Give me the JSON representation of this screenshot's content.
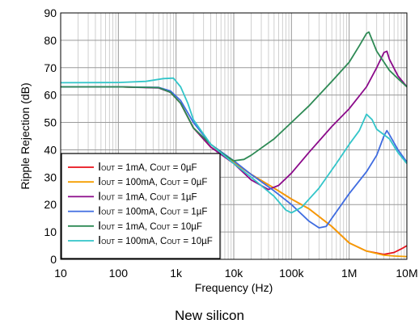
{
  "chart_data": {
    "type": "line",
    "xlabel": "Frequency (Hz)",
    "ylabel": "Ripple Rejection (dB)",
    "xscale": "log",
    "xlim": [
      10,
      10000000
    ],
    "ylim": [
      0,
      90
    ],
    "grid": true,
    "legend_position": "bottom-left",
    "x_ticks": [
      {
        "value": 10,
        "label": "10"
      },
      {
        "value": 100,
        "label": "100"
      },
      {
        "value": 1000,
        "label": "1k"
      },
      {
        "value": 10000,
        "label": "10k"
      },
      {
        "value": 100000,
        "label": "100k"
      },
      {
        "value": 1000000,
        "label": "1M"
      },
      {
        "value": 10000000,
        "label": "10M"
      }
    ],
    "y_ticks": [
      0,
      10,
      20,
      30,
      40,
      50,
      60,
      70,
      80,
      90
    ],
    "series": [
      {
        "label_parts": [
          [
            "I",
            "OUT"
          ],
          [
            " = 1mA, C",
            "OUT"
          ],
          [
            " = 0µF",
            ""
          ]
        ],
        "color": "#e8111a",
        "points": [
          [
            10,
            63
          ],
          [
            100,
            63
          ],
          [
            500,
            62.7
          ],
          [
            800,
            61
          ],
          [
            1200,
            57
          ],
          [
            2000,
            48
          ],
          [
            4000,
            41
          ],
          [
            10000,
            35.5
          ],
          [
            20000,
            31
          ],
          [
            50000,
            26
          ],
          [
            100000,
            22
          ],
          [
            200000,
            18.5
          ],
          [
            500000,
            12
          ],
          [
            1000000,
            6
          ],
          [
            2000000,
            3
          ],
          [
            4000000,
            1.8
          ],
          [
            6000000,
            2.5
          ],
          [
            8000000,
            3.8
          ],
          [
            10000000,
            5
          ]
        ]
      },
      {
        "label_parts": [
          [
            "I",
            "OUT"
          ],
          [
            " = 100mA, C",
            "OUT"
          ],
          [
            " = 0µF",
            ""
          ]
        ],
        "color": "#f59f00",
        "points": [
          [
            10,
            63
          ],
          [
            100,
            63
          ],
          [
            500,
            62.7
          ],
          [
            800,
            61
          ],
          [
            1200,
            57
          ],
          [
            2000,
            48
          ],
          [
            4000,
            41
          ],
          [
            10000,
            35.5
          ],
          [
            20000,
            31
          ],
          [
            50000,
            26
          ],
          [
            100000,
            22
          ],
          [
            200000,
            18.5
          ],
          [
            500000,
            12
          ],
          [
            1000000,
            6
          ],
          [
            2000000,
            3
          ],
          [
            4000000,
            1.5
          ],
          [
            6000000,
            1.2
          ],
          [
            10000000,
            1
          ]
        ]
      },
      {
        "label_parts": [
          [
            "I",
            "OUT"
          ],
          [
            " = 1mA, C",
            "OUT"
          ],
          [
            " = 1µF",
            ""
          ]
        ],
        "color": "#8b0a8a",
        "points": [
          [
            10,
            63
          ],
          [
            100,
            63
          ],
          [
            500,
            62.6
          ],
          [
            800,
            61
          ],
          [
            1200,
            57
          ],
          [
            2000,
            48
          ],
          [
            4000,
            41
          ],
          [
            10000,
            35
          ],
          [
            20000,
            29
          ],
          [
            40000,
            25.5
          ],
          [
            60000,
            27
          ],
          [
            100000,
            31.5
          ],
          [
            200000,
            39
          ],
          [
            500000,
            48.5
          ],
          [
            1000000,
            55
          ],
          [
            2000000,
            63
          ],
          [
            3000000,
            70
          ],
          [
            4000000,
            75.5
          ],
          [
            4500000,
            76
          ],
          [
            5000000,
            73
          ],
          [
            7000000,
            67
          ],
          [
            10000000,
            63
          ]
        ]
      },
      {
        "label_parts": [
          [
            "I",
            "OUT"
          ],
          [
            " = 100mA, C",
            "OUT"
          ],
          [
            " = 1µF",
            ""
          ]
        ],
        "color": "#3f6ce0",
        "points": [
          [
            10,
            63
          ],
          [
            100,
            63
          ],
          [
            500,
            62.8
          ],
          [
            800,
            61.5
          ],
          [
            1200,
            58
          ],
          [
            2000,
            50
          ],
          [
            4000,
            42
          ],
          [
            10000,
            36
          ],
          [
            20000,
            31
          ],
          [
            50000,
            25
          ],
          [
            100000,
            20
          ],
          [
            200000,
            14
          ],
          [
            300000,
            11.5
          ],
          [
            400000,
            12
          ],
          [
            500000,
            15
          ],
          [
            1000000,
            24
          ],
          [
            2000000,
            32
          ],
          [
            3000000,
            38
          ],
          [
            4000000,
            45
          ],
          [
            4500000,
            47
          ],
          [
            5000000,
            45.5
          ],
          [
            7000000,
            40
          ],
          [
            10000000,
            35.5
          ]
        ]
      },
      {
        "label_parts": [
          [
            "I",
            "OUT"
          ],
          [
            " = 1mA, C",
            "OUT"
          ],
          [
            " = 10µF",
            ""
          ]
        ],
        "color": "#2e8a55",
        "points": [
          [
            10,
            63
          ],
          [
            100,
            63
          ],
          [
            500,
            62.7
          ],
          [
            800,
            61
          ],
          [
            1200,
            57
          ],
          [
            2000,
            48
          ],
          [
            4000,
            42
          ],
          [
            7000,
            38
          ],
          [
            10000,
            36
          ],
          [
            15000,
            36.5
          ],
          [
            20000,
            38
          ],
          [
            50000,
            44
          ],
          [
            100000,
            50
          ],
          [
            200000,
            56
          ],
          [
            500000,
            65
          ],
          [
            1000000,
            72
          ],
          [
            1500000,
            78
          ],
          [
            2000000,
            82.5
          ],
          [
            2200000,
            83
          ],
          [
            3000000,
            76
          ],
          [
            5000000,
            69
          ],
          [
            7000000,
            66
          ],
          [
            10000000,
            63
          ]
        ]
      },
      {
        "label_parts": [
          [
            "I",
            "OUT"
          ],
          [
            " = 100mA, C",
            "OUT"
          ],
          [
            " = 10µF",
            ""
          ]
        ],
        "color": "#33c5c9",
        "points": [
          [
            10,
            64.5
          ],
          [
            100,
            64.6
          ],
          [
            300,
            65
          ],
          [
            600,
            66
          ],
          [
            900,
            66.2
          ],
          [
            1200,
            63
          ],
          [
            1600,
            57
          ],
          [
            2000,
            51
          ],
          [
            4000,
            42
          ],
          [
            10000,
            35
          ],
          [
            20000,
            30
          ],
          [
            50000,
            23
          ],
          [
            80000,
            18
          ],
          [
            100000,
            17
          ],
          [
            150000,
            19
          ],
          [
            300000,
            26
          ],
          [
            600000,
            35
          ],
          [
            1000000,
            42
          ],
          [
            1500000,
            47
          ],
          [
            2000000,
            53
          ],
          [
            2500000,
            51
          ],
          [
            3000000,
            47.5
          ],
          [
            5000000,
            44
          ],
          [
            7000000,
            39
          ],
          [
            10000000,
            35
          ]
        ]
      }
    ],
    "caption": "New silicon"
  }
}
